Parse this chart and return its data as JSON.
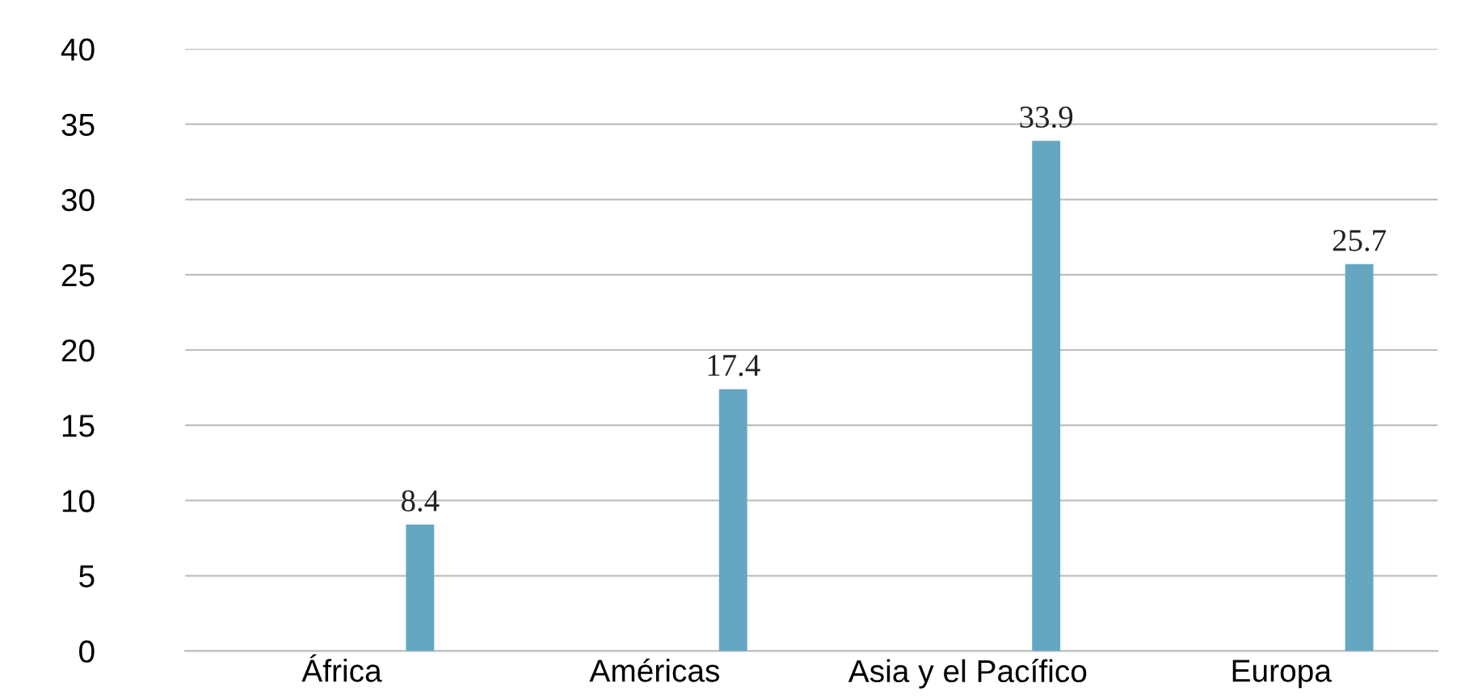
{
  "chart_data": {
    "type": "bar",
    "categories": [
      "África",
      "Américas",
      "Asia y el Pacífico",
      "Europa"
    ],
    "values": [
      8.4,
      17.4,
      33.9,
      25.7
    ],
    "color": "#65a7c1",
    "ylim": [
      0,
      40
    ],
    "yticks": [
      0,
      5,
      10,
      15,
      20,
      25,
      30,
      35,
      40
    ],
    "grid": "y",
    "data_labels": true,
    "legend": false
  }
}
